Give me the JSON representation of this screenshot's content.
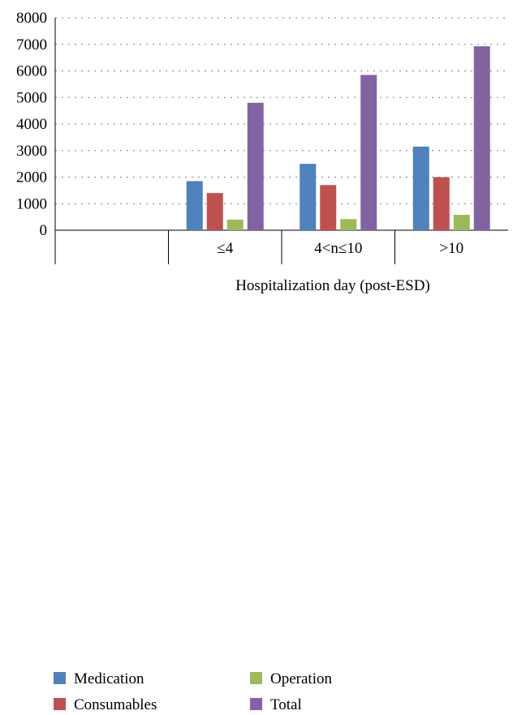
{
  "chart_data": {
    "type": "bar",
    "title": "",
    "xlabel": "Hospitalization day (post-ESD)",
    "ylabel": "",
    "ylim": [
      0,
      8000
    ],
    "yticks": [
      0,
      1000,
      2000,
      3000,
      4000,
      5000,
      6000,
      7000,
      8000
    ],
    "grid": "dashed horizontal",
    "categories": [
      "",
      "≤4",
      "4<n≤10",
      ">10"
    ],
    "series": [
      {
        "name": "Medication",
        "color": "#4F81BD",
        "values": [
          null,
          1850,
          2500,
          3150
        ]
      },
      {
        "name": "Consumables",
        "color": "#C0504D",
        "values": [
          null,
          1400,
          1700,
          2000
        ]
      },
      {
        "name": "Operation",
        "color": "#9BBB59",
        "values": [
          null,
          400,
          420,
          580
        ]
      },
      {
        "name": "Total",
        "color": "#8064A2",
        "values": [
          null,
          4800,
          5850,
          6930
        ]
      }
    ],
    "legend_position": "bottom"
  }
}
